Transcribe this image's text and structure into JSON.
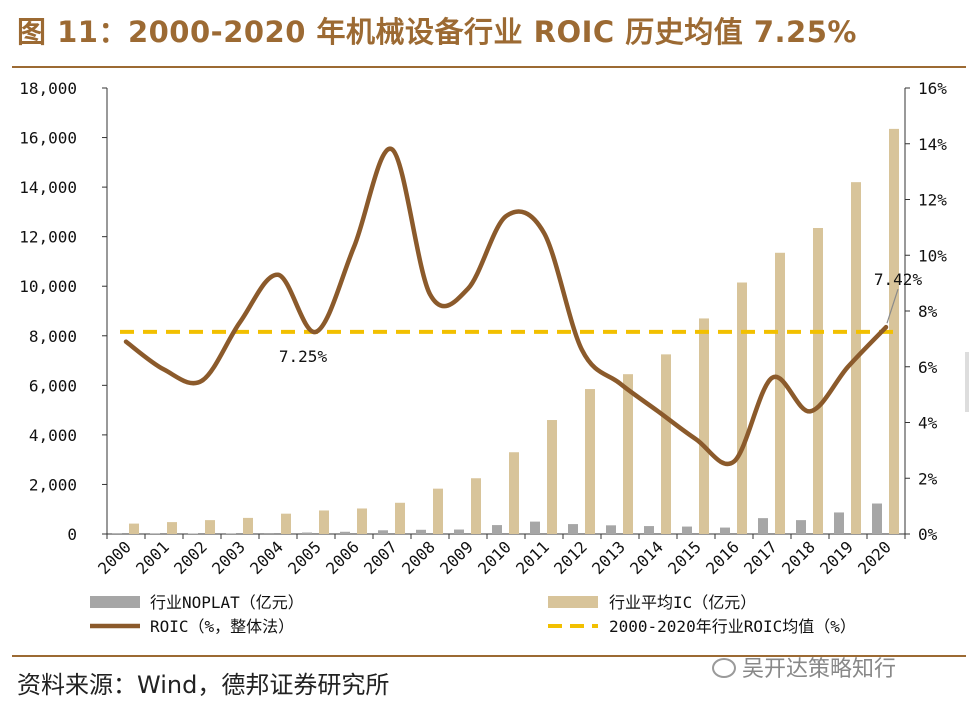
{
  "figure": {
    "title": "图 11：2000-2020 年机械设备行业 ROIC 历史均值 7.25%",
    "source": "资料来源：Wind，德邦证券研究所",
    "watermark": "吴开达策略知行"
  },
  "colors": {
    "title": "#9C6A33",
    "noplat_bar": "#A6A6A6",
    "ic_bar": "#D8C49A",
    "roic_line": "#8B5A2B",
    "avg_line": "#F2C000",
    "axis": "#333333"
  },
  "chart_data": {
    "type": "bar+line",
    "categories": [
      "2000",
      "2001",
      "2002",
      "2003",
      "2004",
      "2005",
      "2006",
      "2007",
      "2008",
      "2009",
      "2010",
      "2011",
      "2012",
      "2013",
      "2014",
      "2015",
      "2016",
      "2017",
      "2018",
      "2019",
      "2020"
    ],
    "left_axis": {
      "min": 0,
      "max": 18000,
      "step": 2000,
      "tick_labels": [
        "0",
        "2,000",
        "4,000",
        "6,000",
        "8,000",
        "10,000",
        "12,000",
        "14,000",
        "16,000",
        "18,000"
      ]
    },
    "right_axis": {
      "min": 0,
      "max": 16,
      "step": 2,
      "tick_labels": [
        "0%",
        "2%",
        "4%",
        "6%",
        "8%",
        "10%",
        "12%",
        "14%",
        "16%"
      ]
    },
    "series": [
      {
        "name": "行业NOPLAT（亿元）",
        "type": "bar",
        "axis": "left",
        "values": [
          10,
          15,
          20,
          25,
          40,
          60,
          90,
          150,
          170,
          180,
          360,
          500,
          400,
          350,
          320,
          300,
          260,
          640,
          560,
          870,
          1230
        ]
      },
      {
        "name": "行业平均IC（亿元）",
        "type": "bar",
        "axis": "left",
        "values": [
          420,
          480,
          560,
          650,
          820,
          950,
          1030,
          1260,
          1830,
          2250,
          3300,
          4600,
          5850,
          6450,
          7250,
          8700,
          10150,
          11350,
          12350,
          14200,
          16350
        ]
      },
      {
        "name": "ROIC（%，整体法）",
        "type": "line",
        "axis": "right",
        "smooth": true,
        "values": [
          6.9,
          5.9,
          5.5,
          7.6,
          9.3,
          7.25,
          10.3,
          13.8,
          8.6,
          8.8,
          11.4,
          10.8,
          6.6,
          5.4,
          4.4,
          3.4,
          2.6,
          5.6,
          4.4,
          6.0,
          7.42
        ]
      },
      {
        "name": "2000-2020年行业ROIC均值（%）",
        "type": "dashed-line",
        "axis": "right",
        "values": [
          7.25,
          7.25,
          7.25,
          7.25,
          7.25,
          7.25,
          7.25,
          7.25,
          7.25,
          7.25,
          7.25,
          7.25,
          7.25,
          7.25,
          7.25,
          7.25,
          7.25,
          7.25,
          7.25,
          7.25,
          7.25
        ]
      }
    ],
    "annotations": [
      {
        "text": "7.25%",
        "anchor_category": "2005",
        "value": 7.25,
        "axis": "right"
      },
      {
        "text": "7.42%",
        "anchor_category": "2020",
        "value": 7.42,
        "axis": "right"
      }
    ],
    "legend": [
      "行业NOPLAT（亿元）",
      "行业平均IC（亿元）",
      "ROIC（%，整体法）",
      "2000-2020年行业ROIC均值（%）"
    ]
  }
}
